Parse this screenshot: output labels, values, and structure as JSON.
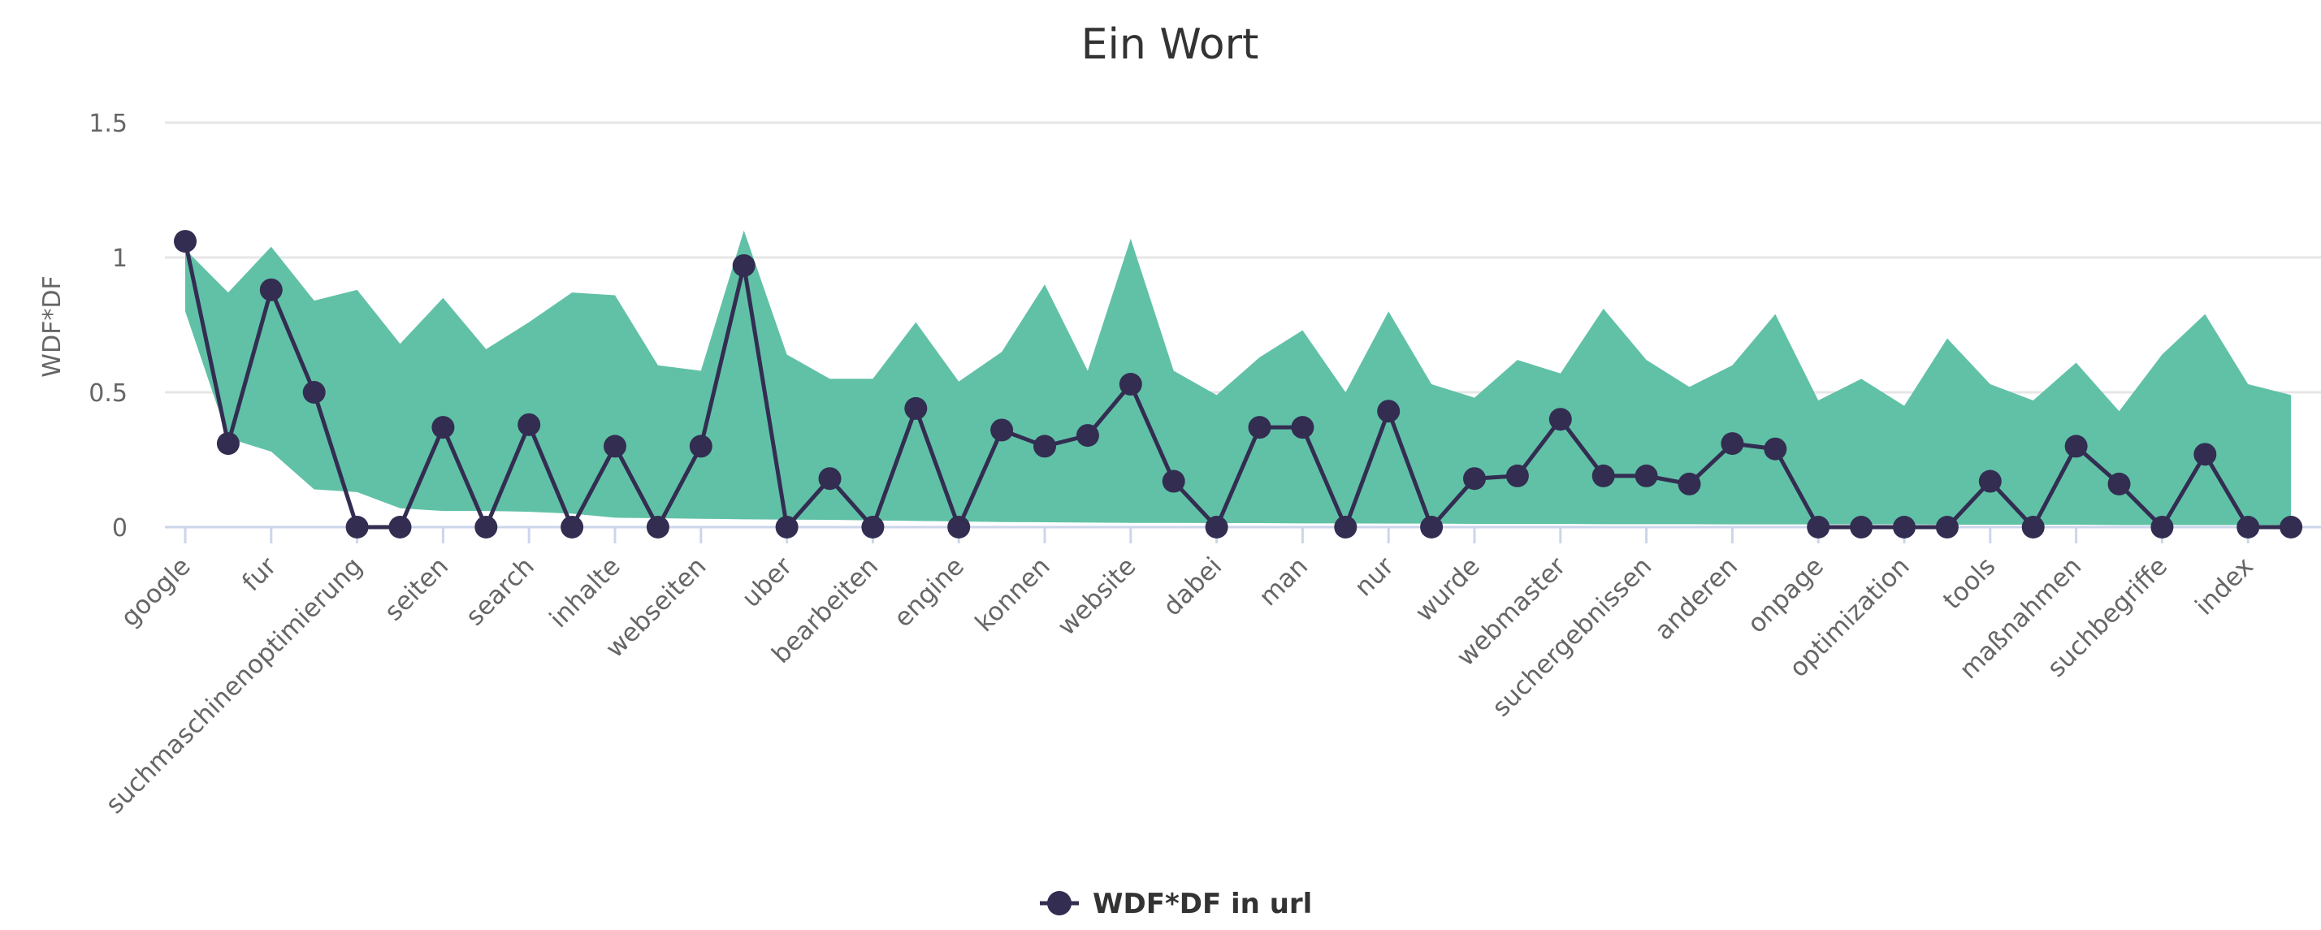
{
  "chart": {
    "title": "Ein Wort",
    "y_axis_title": "WDF*DF",
    "legend_label": "WDF*DF in url"
  },
  "colors": {
    "range_fill": "#61C1A6",
    "series_line": "#332D52",
    "gridline": "#e6e6e6",
    "axis": "#ccd6eb",
    "title_text": "#333333",
    "axis_text": "#666666"
  },
  "chart_data": {
    "type": "line",
    "title": "Ein Wort",
    "xlabel": "",
    "ylabel": "WDF*DF",
    "ylim": [
      0,
      1.5
    ],
    "yticks": [
      0,
      0.5,
      1,
      1.5
    ],
    "ytick_labels": [
      "0",
      "0.5",
      "1",
      "1.5"
    ],
    "grid": true,
    "legend_position": "bottom-center",
    "x_label_rotation": -45,
    "categories": [
      "google",
      "",
      "fur",
      "",
      "suchmaschinenoptimierung",
      "",
      "seiten",
      "",
      "search",
      "",
      "inhalte",
      "",
      "webseiten",
      "",
      "uber",
      "",
      "bearbeiten",
      "",
      "engine",
      "",
      "konnen",
      "",
      "website",
      "",
      "dabei",
      "",
      "man",
      "",
      "nur",
      "",
      "wurde",
      "",
      "webmaster",
      "",
      "suchergebnissen",
      "",
      "anderen",
      "",
      "onpage",
      "",
      "optimization",
      "",
      "tools",
      "",
      "maßnahmen",
      "",
      "suchbegriffe",
      "",
      "index",
      ""
    ],
    "series": [
      {
        "name": "WDF*DF in url",
        "type": "line",
        "values": [
          1.06,
          0.31,
          0.88,
          0.5,
          0,
          0,
          0.37,
          0,
          0.38,
          0,
          0.3,
          0,
          0.3,
          0.97,
          0,
          0.18,
          0,
          0.44,
          0,
          0.36,
          0.3,
          0.34,
          0.53,
          0.17,
          0,
          0.37,
          0.37,
          0,
          0.43,
          0,
          0.18,
          0.19,
          0.4,
          0.19,
          0.19,
          0.16,
          0.31,
          0.29,
          0,
          0,
          0,
          0,
          0.17,
          0,
          0.3,
          0.16,
          0,
          0.27,
          0,
          0
        ]
      },
      {
        "name": "Range",
        "type": "arearange",
        "in_legend": false,
        "high": [
          1.03,
          0.87,
          1.04,
          0.84,
          0.88,
          0.68,
          0.85,
          0.66,
          0.76,
          0.87,
          0.86,
          0.6,
          0.58,
          1.1,
          0.64,
          0.55,
          0.55,
          0.76,
          0.54,
          0.65,
          0.9,
          0.58,
          1.07,
          0.58,
          0.49,
          0.63,
          0.73,
          0.5,
          0.8,
          0.53,
          0.48,
          0.62,
          0.57,
          0.81,
          0.62,
          0.52,
          0.6,
          0.79,
          0.47,
          0.55,
          0.45,
          0.7,
          0.53,
          0.47,
          0.61,
          0.43,
          0.64,
          0.79,
          0.53,
          0.49
        ],
        "low": [
          0.8,
          0.33,
          0.28,
          0.14,
          0.13,
          0.07,
          0.06,
          0.06,
          0.057,
          0.05,
          0.035,
          0.033,
          0.031,
          0.029,
          0.028,
          0.027,
          0.025,
          0.023,
          0.021,
          0.019,
          0.018,
          0.017,
          0.016,
          0.016,
          0.015,
          0.015,
          0.014,
          0.014,
          0.013,
          0.013,
          0.012,
          0.012,
          0.012,
          0.011,
          0.011,
          0.011,
          0.01,
          0.01,
          0.01,
          0.01,
          0.01,
          0.009,
          0.009,
          0.009,
          0.009,
          0.008,
          0.008,
          0.008,
          0.008,
          0.008
        ]
      }
    ]
  }
}
